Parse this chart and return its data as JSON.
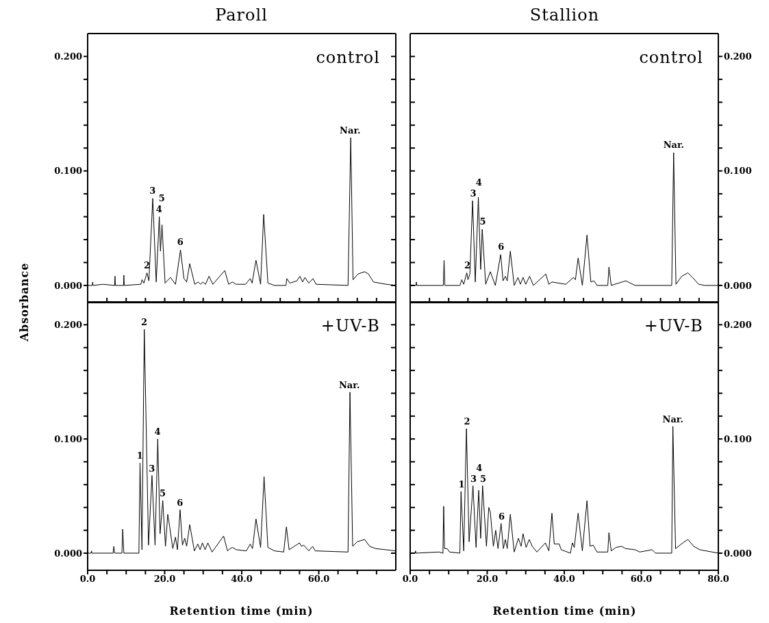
{
  "chart_data": [
    {
      "type": "line",
      "title": "Paroll",
      "color": "#000000",
      "xlim": [
        0,
        80
      ],
      "ylim": [
        -0.015,
        0.22
      ],
      "tick_labels": "y",
      "xticks": [
        {
          "value": 0,
          "label": null
        },
        {
          "value": 5,
          "label": null
        },
        {
          "value": 10,
          "label": null
        },
        {
          "value": 15,
          "label": null
        },
        {
          "value": 20,
          "label": null
        },
        {
          "value": 25,
          "label": null
        },
        {
          "value": 30,
          "label": null
        },
        {
          "value": 35,
          "label": null
        },
        {
          "value": 40,
          "label": null
        },
        {
          "value": 45,
          "label": null
        },
        {
          "value": 50,
          "label": null
        },
        {
          "value": 55,
          "label": null
        },
        {
          "value": 60,
          "label": null
        },
        {
          "value": 65,
          "label": null
        },
        {
          "value": 70,
          "label": null
        },
        {
          "value": 75,
          "label": null
        }
      ],
      "yticks": [
        {
          "value": 0,
          "label": "0.000"
        },
        {
          "value": 0.02,
          "label": null
        },
        {
          "value": 0.04,
          "label": null
        },
        {
          "value": 0.06,
          "label": null
        },
        {
          "value": 0.08,
          "label": null
        },
        {
          "value": 0.1,
          "label": "0.100"
        },
        {
          "value": 0.12,
          "label": null
        },
        {
          "value": 0.14,
          "label": null
        },
        {
          "value": 0.16,
          "label": null
        },
        {
          "value": 0.18,
          "label": null
        },
        {
          "value": 0.2,
          "label": "0.200"
        }
      ],
      "ylabel": "Absorbance",
      "x": [
        0,
        1.2,
        1.3,
        1.4,
        4,
        7,
        7.1,
        7.2,
        9.3,
        9.4,
        9.5,
        13.8,
        14.1,
        14.6,
        15.4,
        15.9,
        16.9,
        17.8,
        18.6,
        18.9,
        19.3,
        20.1,
        21.5,
        22.8,
        24.1,
        25,
        25.7,
        26.5,
        27.8,
        28.7,
        29.3,
        29.9,
        30.6,
        31.5,
        32.5,
        35.6,
        36.6,
        37.6,
        38.5,
        41,
        42.2,
        42.7,
        43.7,
        44.9,
        45.7,
        46.8,
        48.5,
        51.5,
        51.7,
        52.5,
        54.3,
        55.1,
        55.8,
        56.4,
        57.4,
        58.5,
        59.3,
        67.6,
        68.3,
        68.9,
        70.2,
        71.9,
        72.9,
        74.2,
        77.5,
        80
      ],
      "values": [
        0,
        0,
        0.003,
        0,
        0.001,
        0,
        0.008,
        0,
        0,
        0.009,
        0,
        0.001,
        0.005,
        0.002,
        0.011,
        0.004,
        0.076,
        0.003,
        0.06,
        0.03,
        0.053,
        0.002,
        0.007,
        0.001,
        0.031,
        0.006,
        0.003,
        0.019,
        0.001,
        0.003,
        0.001,
        0.003,
        0.001,
        0.008,
        0.001,
        0.013,
        0.001,
        0.003,
        0.001,
        0.001,
        0.006,
        0.002,
        0.022,
        0.001,
        0.062,
        0.002,
        0,
        0,
        0.006,
        0.002,
        0.004,
        0.008,
        0.003,
        0.007,
        0.002,
        0.006,
        0.001,
        0,
        0.129,
        0.005,
        0.01,
        0.012,
        0.01,
        0.003,
        0.001,
        0
      ],
      "annotations": [
        "control",
        {
          "text": "2",
          "x": 15.4,
          "y": 0.011
        },
        {
          "text": "3",
          "x": 16.9,
          "y": 0.076
        },
        {
          "text": "4",
          "x": 18.6,
          "y": 0.06
        },
        {
          "text": "5",
          "x": 19.3,
          "y": 0.053
        },
        {
          "text": "6",
          "x": 24.1,
          "y": 0.031
        },
        {
          "text": "Nar.",
          "x": 68.3,
          "y": 0.129
        }
      ]
    },
    {
      "type": "line",
      "title": "Stallion",
      "color": "#000000",
      "xlim": [
        0,
        80
      ],
      "ylim": [
        -0.015,
        0.22
      ],
      "tick_labels": "y",
      "xticks": [
        {
          "value": 0,
          "label": null
        },
        {
          "value": 5,
          "label": null
        },
        {
          "value": 10,
          "label": null
        },
        {
          "value": 15,
          "label": null
        },
        {
          "value": 20,
          "label": null
        },
        {
          "value": 25,
          "label": null
        },
        {
          "value": 30,
          "label": null
        },
        {
          "value": 35,
          "label": null
        },
        {
          "value": 40,
          "label": null
        },
        {
          "value": 45,
          "label": null
        },
        {
          "value": 50,
          "label": null
        },
        {
          "value": 55,
          "label": null
        },
        {
          "value": 60,
          "label": null
        },
        {
          "value": 65,
          "label": null
        },
        {
          "value": 70,
          "label": null
        },
        {
          "value": 75,
          "label": null
        },
        {
          "value": 80,
          "label": null
        }
      ],
      "yticks": [
        {
          "value": 0,
          "label": "0.000"
        },
        {
          "value": 0.02,
          "label": null
        },
        {
          "value": 0.04,
          "label": null
        },
        {
          "value": 0.06,
          "label": null
        },
        {
          "value": 0.08,
          "label": null
        },
        {
          "value": 0.1,
          "label": "0.100"
        },
        {
          "value": 0.12,
          "label": null
        },
        {
          "value": 0.14,
          "label": null
        },
        {
          "value": 0.16,
          "label": null
        },
        {
          "value": 0.18,
          "label": null
        },
        {
          "value": 0.2,
          "label": "0.200"
        }
      ],
      "x": [
        0,
        1.5,
        1.6,
        1.7,
        8.6,
        8.8,
        9,
        12.9,
        13.4,
        13.9,
        14.7,
        15,
        15.5,
        16.2,
        16.9,
        17.7,
        18.3,
        18.7,
        19.6,
        20.8,
        22.1,
        23.5,
        24.1,
        24.7,
        25.2,
        26,
        27,
        28,
        28.6,
        29.3,
        30,
        31,
        32,
        35.2,
        36,
        36.8,
        40.4,
        42.4,
        42.9,
        43.6,
        44.7,
        45.9,
        46.9,
        47.7,
        48.5,
        51.3,
        51.6,
        52.2,
        55,
        56,
        58.4,
        67.9,
        68.4,
        69,
        70.5,
        72.1,
        73.3,
        74.9,
        76.5,
        80
      ],
      "values": [
        0,
        0,
        0.003,
        0,
        0,
        0.022,
        0,
        0,
        0.005,
        0.001,
        0.011,
        0.005,
        0.01,
        0.074,
        0.003,
        0.077,
        0.014,
        0.049,
        0.001,
        0.012,
        0,
        0.027,
        0.004,
        0.008,
        0.004,
        0.03,
        0,
        0.007,
        0.001,
        0.007,
        0.001,
        0.008,
        0,
        0.01,
        0.001,
        0.003,
        0.001,
        0.007,
        0.005,
        0.024,
        0,
        0.044,
        0.003,
        0.004,
        0,
        0,
        0.016,
        0,
        0.003,
        0.004,
        0,
        0,
        0.116,
        0.001,
        0.008,
        0.011,
        0.007,
        0.001,
        0,
        0
      ],
      "annotations": [
        "control",
        {
          "text": "2",
          "x": 14.7,
          "y": 0.011
        },
        {
          "text": "3",
          "x": 16.2,
          "y": 0.074
        },
        {
          "text": "4",
          "x": 17.7,
          "y": 0.077
        },
        {
          "text": "5",
          "x": 18.7,
          "y": 0.049
        },
        {
          "text": "6",
          "x": 23.5,
          "y": 0.027
        },
        {
          "text": "Nar.",
          "x": 68.4,
          "y": 0.116
        }
      ]
    },
    {
      "type": "line",
      "color": "#000000",
      "xlim": [
        0,
        80
      ],
      "ylim": [
        -0.015,
        0.22
      ],
      "xlabel": "Retention time (min)",
      "xticks": [
        {
          "value": 0,
          "label": "0.0"
        },
        {
          "value": 5,
          "label": null
        },
        {
          "value": 10,
          "label": null
        },
        {
          "value": 15,
          "label": null
        },
        {
          "value": 20,
          "label": "20.0"
        },
        {
          "value": 25,
          "label": null
        },
        {
          "value": 30,
          "label": null
        },
        {
          "value": 35,
          "label": null
        },
        {
          "value": 40,
          "label": "40.0"
        },
        {
          "value": 45,
          "label": null
        },
        {
          "value": 50,
          "label": null
        },
        {
          "value": 55,
          "label": null
        },
        {
          "value": 60,
          "label": "60.0"
        },
        {
          "value": 65,
          "label": null
        },
        {
          "value": 70,
          "label": null
        },
        {
          "value": 75,
          "label": null
        }
      ],
      "yticks": [
        {
          "value": 0,
          "label": "0.000"
        },
        {
          "value": 0.02,
          "label": null
        },
        {
          "value": 0.04,
          "label": null
        },
        {
          "value": 0.06,
          "label": null
        },
        {
          "value": 0.08,
          "label": null
        },
        {
          "value": 0.1,
          "label": "0.100"
        },
        {
          "value": 0.12,
          "label": null
        },
        {
          "value": 0.14,
          "label": null
        },
        {
          "value": 0.16,
          "label": null
        },
        {
          "value": 0.18,
          "label": null
        },
        {
          "value": 0.2,
          "label": "0.200"
        }
      ],
      "x": [
        0,
        0.9,
        1,
        1.1,
        6.6,
        6.8,
        7,
        8.9,
        9.1,
        9.4,
        13.3,
        13.6,
        14.1,
        14.7,
        15.8,
        16.7,
        17.5,
        18.2,
        18.8,
        19.5,
        20.2,
        20.8,
        21.3,
        22.1,
        22.8,
        23.3,
        24,
        24.6,
        25.2,
        25.7,
        26.5,
        27.7,
        28.6,
        29.2,
        29.8,
        30.5,
        31.2,
        32.3,
        35.3,
        36.3,
        37,
        37.6,
        38.6,
        41.2,
        42.2,
        42.8,
        43.7,
        44.9,
        45.8,
        46.8,
        48.5,
        50.9,
        51.6,
        52.3,
        54.1,
        55,
        55.5,
        56.1,
        57.4,
        58.4,
        59.1,
        67.6,
        68.1,
        68.8,
        70,
        71.9,
        73.2,
        74.8,
        80
      ],
      "values": [
        0,
        0,
        0.002,
        0,
        0,
        0.006,
        0,
        0,
        0.021,
        0,
        0,
        0.079,
        0.003,
        0.196,
        0.007,
        0.068,
        0.007,
        0.1,
        0.017,
        0.046,
        0.006,
        0.034,
        0.023,
        0.004,
        0.014,
        0.003,
        0.038,
        0.007,
        0.013,
        0.006,
        0.025,
        0.002,
        0.008,
        0.003,
        0.009,
        0.003,
        0.009,
        0.001,
        0.015,
        0.002,
        0.004,
        0.005,
        0.003,
        0.002,
        0.008,
        0.004,
        0.03,
        0.005,
        0.067,
        0.005,
        0.002,
        0.001,
        0.023,
        0.003,
        0.007,
        0.009,
        0.006,
        0.007,
        0.002,
        0.006,
        0.002,
        0.001,
        0.141,
        0.006,
        0.01,
        0.012,
        0.006,
        0.004,
        0.002
      ],
      "annotations": [
        "+UV-B",
        {
          "text": "1",
          "x": 13.6,
          "y": 0.079
        },
        {
          "text": "2",
          "x": 14.7,
          "y": 0.196
        },
        {
          "text": "3",
          "x": 16.7,
          "y": 0.068
        },
        {
          "text": "4",
          "x": 18.2,
          "y": 0.1
        },
        {
          "text": "5",
          "x": 19.5,
          "y": 0.046
        },
        {
          "text": "6",
          "x": 24.0,
          "y": 0.038
        },
        {
          "text": "Nar.",
          "x": 68.1,
          "y": 0.141
        }
      ]
    },
    {
      "type": "line",
      "color": "#000000",
      "xlim": [
        0,
        80
      ],
      "ylim": [
        -0.015,
        0.22
      ],
      "xlabel": "Retention time (min)",
      "xticks": [
        {
          "value": 0,
          "label": "0.0"
        },
        {
          "value": 5,
          "label": null
        },
        {
          "value": 10,
          "label": null
        },
        {
          "value": 15,
          "label": null
        },
        {
          "value": 20,
          "label": "20.0"
        },
        {
          "value": 25,
          "label": null
        },
        {
          "value": 30,
          "label": null
        },
        {
          "value": 35,
          "label": null
        },
        {
          "value": 40,
          "label": "40.0"
        },
        {
          "value": 45,
          "label": null
        },
        {
          "value": 50,
          "label": null
        },
        {
          "value": 55,
          "label": null
        },
        {
          "value": 60,
          "label": "60.0"
        },
        {
          "value": 65,
          "label": null
        },
        {
          "value": 70,
          "label": null
        },
        {
          "value": 75,
          "label": null
        },
        {
          "value": 80,
          "label": "80.0"
        }
      ],
      "yticks": [
        {
          "value": 0,
          "label": "0.000"
        },
        {
          "value": 0.02,
          "label": null
        },
        {
          "value": 0.04,
          "label": null
        },
        {
          "value": 0.06,
          "label": null
        },
        {
          "value": 0.08,
          "label": null
        },
        {
          "value": 0.1,
          "label": "0.100"
        },
        {
          "value": 0.12,
          "label": null
        },
        {
          "value": 0.14,
          "label": null
        },
        {
          "value": 0.16,
          "label": null
        },
        {
          "value": 0.18,
          "label": null
        },
        {
          "value": 0.2,
          "label": "0.200"
        }
      ],
      "x": [
        0,
        1.3,
        1.4,
        1.5,
        7.5,
        8.5,
        8.7,
        8.9,
        9.6,
        10.2,
        12.9,
        13.2,
        13.9,
        14.6,
        15.3,
        16.3,
        17.1,
        17.8,
        18.3,
        18.8,
        19.8,
        20.4,
        20.8,
        21.6,
        22.2,
        22.8,
        23.6,
        24.2,
        24.7,
        25.2,
        26,
        27,
        28.1,
        28.8,
        29.3,
        30.1,
        30.9,
        31.7,
        32.9,
        35.1,
        36,
        36.8,
        37.4,
        38.7,
        39.2,
        41.6,
        42.1,
        42.6,
        43.6,
        44.7,
        45.9,
        46.7,
        47.5,
        48.5,
        51.3,
        51.6,
        52.2,
        53.4,
        54.9,
        55.9,
        58.4,
        59.6,
        62.8,
        63.7,
        67.9,
        68.2,
        68.9,
        70.8,
        72.1,
        73.6,
        75.2,
        80
      ],
      "values": [
        0,
        0,
        0.002,
        0,
        0.001,
        0,
        0.041,
        0.004,
        0.004,
        0.001,
        0,
        0.054,
        0.002,
        0.109,
        0.01,
        0.059,
        0.005,
        0.055,
        0.013,
        0.059,
        0.006,
        0.04,
        0.036,
        0.006,
        0.02,
        0.004,
        0.026,
        0.004,
        0.012,
        0.004,
        0.034,
        0.001,
        0.013,
        0.006,
        0.017,
        0.005,
        0.012,
        0.006,
        0.001,
        0.009,
        0.002,
        0.035,
        0.008,
        0.008,
        0.003,
        0,
        0.009,
        0.005,
        0.035,
        0.002,
        0.046,
        0.006,
        0.007,
        0.001,
        0.001,
        0.018,
        0.002,
        0.005,
        0.006,
        0.004,
        0.003,
        0.001,
        0.003,
        0,
        0,
        0.111,
        0.004,
        0.009,
        0.012,
        0.006,
        0.003,
        0
      ],
      "annotations": [
        "+UV-B",
        {
          "text": "1",
          "x": 13.2,
          "y": 0.054
        },
        {
          "text": "2",
          "x": 14.6,
          "y": 0.109
        },
        {
          "text": "3",
          "x": 16.3,
          "y": 0.059
        },
        {
          "text": "4",
          "x": 17.8,
          "y": 0.055
        },
        {
          "text": "5",
          "x": 18.8,
          "y": 0.059
        },
        {
          "text": "6",
          "x": 23.6,
          "y": 0.026
        },
        {
          "text": "Nar.",
          "x": 68.2,
          "y": 0.111
        }
      ]
    }
  ]
}
